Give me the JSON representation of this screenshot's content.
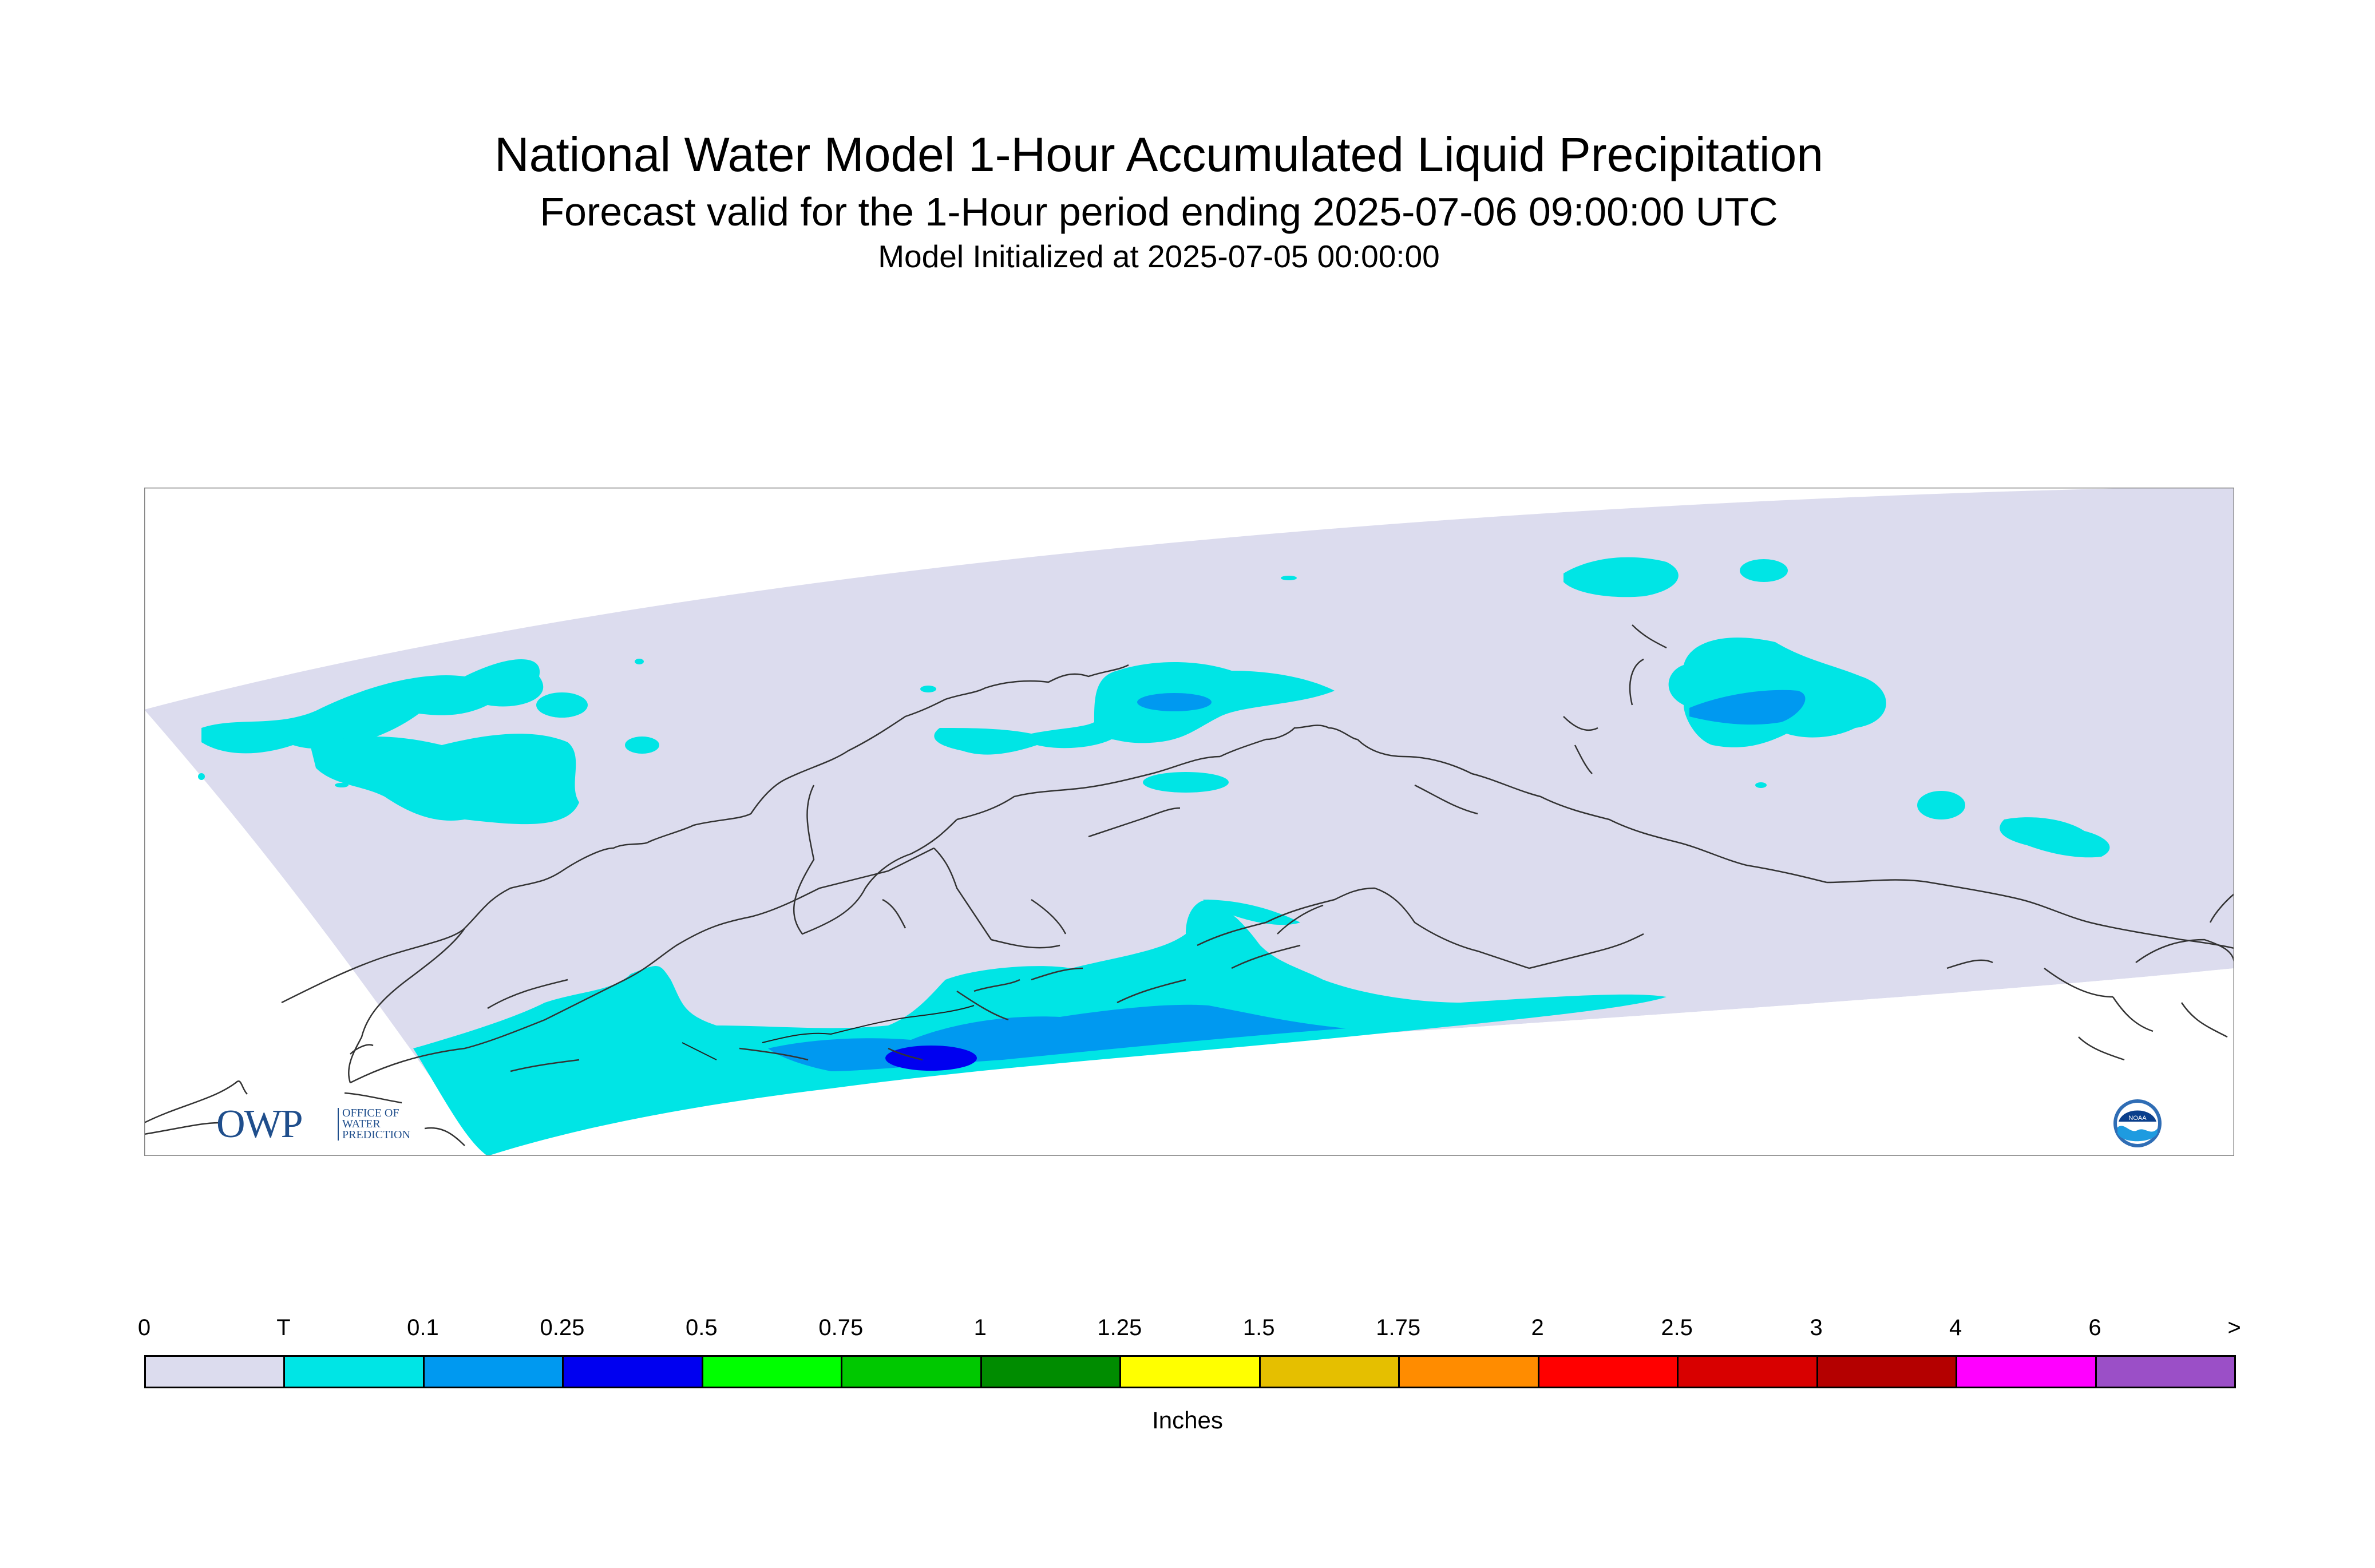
{
  "header": {
    "title": "National Water Model 1-Hour Accumulated Liquid Precipitation",
    "subtitle": "Forecast valid for the 1-Hour period ending 2025-07-06 09:00:00 UTC",
    "init": "Model Initialized at 2025-07-05 00:00:00"
  },
  "colorbar": {
    "tick_labels": [
      "0",
      "T",
      "0.1",
      "0.25",
      "0.5",
      "0.75",
      "1",
      "1.25",
      "1.5",
      "1.75",
      "2",
      "2.5",
      "3",
      "4",
      "6",
      ">"
    ],
    "colors": [
      "#dcdcee",
      "#00e5e5",
      "#0099f0",
      "#0000f0",
      "#00ff00",
      "#00c800",
      "#008c00",
      "#ffff00",
      "#e5bf00",
      "#ff8c00",
      "#ff0000",
      "#d80000",
      "#b40000",
      "#ff00ff",
      "#9b4fc7"
    ],
    "units": "Inches"
  },
  "logos": {
    "owp_main": "OWP",
    "owp_sub_1": "OFFICE OF",
    "owp_sub_2": "WATER",
    "owp_sub_3": "PREDICTION",
    "noaa": "NOAA"
  },
  "colors": {
    "domain_background": "#dcdcee",
    "trace_precip": "#00e5e5",
    "light_precip": "#0099f0",
    "moderate_precip": "#0000f0",
    "coastline": "#333333"
  }
}
